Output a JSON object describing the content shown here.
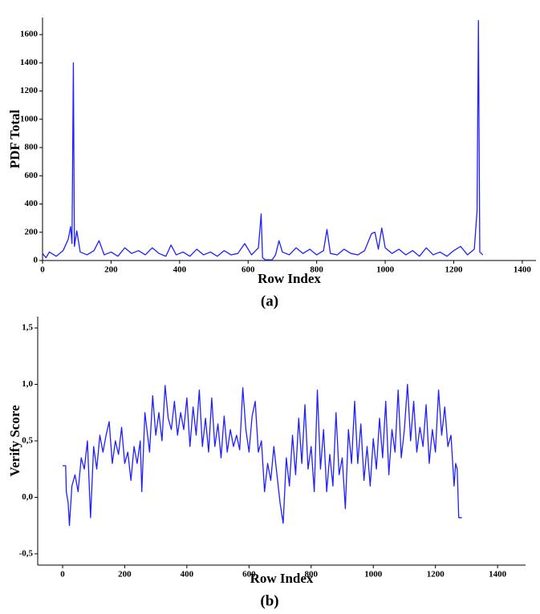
{
  "chart_data": [
    {
      "type": "line",
      "caption": "(a)",
      "x_label": "Row Index",
      "y_label": "PDF Total",
      "xlim": [
        0,
        1440
      ],
      "ylim": [
        0,
        1720
      ],
      "xticks": [
        0,
        200,
        400,
        600,
        800,
        1000,
        1200,
        1400
      ],
      "yticks": [
        0,
        200,
        400,
        600,
        800,
        1000,
        1200,
        1400,
        1600
      ],
      "series": [
        {
          "color": "#1f1fff",
          "x": [
            0,
            10,
            20,
            40,
            60,
            75,
            82,
            86,
            90,
            93,
            100,
            110,
            130,
            150,
            165,
            180,
            200,
            220,
            240,
            260,
            280,
            300,
            320,
            340,
            360,
            375,
            390,
            410,
            430,
            450,
            470,
            490,
            510,
            530,
            550,
            570,
            590,
            610,
            630,
            638,
            642,
            650,
            670,
            680,
            690,
            700,
            720,
            740,
            760,
            780,
            800,
            820,
            830,
            840,
            860,
            880,
            900,
            920,
            940,
            960,
            970,
            980,
            990,
            1000,
            1020,
            1040,
            1060,
            1080,
            1100,
            1120,
            1140,
            1160,
            1180,
            1200,
            1220,
            1240,
            1260,
            1268,
            1272,
            1276,
            1285
          ],
          "values": [
            50,
            20,
            60,
            30,
            70,
            150,
            240,
            120,
            1400,
            100,
            210,
            60,
            40,
            70,
            140,
            40,
            60,
            30,
            90,
            50,
            70,
            40,
            90,
            50,
            30,
            110,
            40,
            60,
            30,
            80,
            40,
            60,
            30,
            70,
            40,
            50,
            120,
            40,
            90,
            330,
            20,
            5,
            5,
            40,
            140,
            60,
            40,
            90,
            50,
            80,
            40,
            70,
            220,
            50,
            40,
            80,
            50,
            40,
            70,
            190,
            200,
            80,
            230,
            90,
            50,
            80,
            40,
            70,
            30,
            90,
            40,
            60,
            30,
            70,
            100,
            40,
            80,
            350,
            1700,
            60,
            40
          ]
        }
      ]
    },
    {
      "type": "line",
      "caption": "(b)",
      "x_label": "Row Index",
      "y_label": "Verify Score",
      "xlim": [
        -80,
        1490
      ],
      "ylim": [
        -0.6,
        1.6
      ],
      "xticks": [
        0,
        200,
        400,
        600,
        800,
        1000,
        1200,
        1400
      ],
      "yticks": [
        {
          "value": -0.5,
          "label": "-0,5"
        },
        {
          "value": 0,
          "label": "0,0"
        },
        {
          "value": 0.5,
          "label": "0,5"
        },
        {
          "value": 1,
          "label": "1,0"
        },
        {
          "value": 1.5,
          "label": "1,5"
        }
      ],
      "series": [
        {
          "color": "#1f1fff",
          "x": [
            0,
            10,
            12,
            18,
            22,
            30,
            40,
            50,
            60,
            70,
            80,
            90,
            100,
            110,
            120,
            130,
            140,
            150,
            160,
            170,
            180,
            190,
            200,
            210,
            220,
            230,
            240,
            250,
            255,
            265,
            280,
            290,
            300,
            310,
            320,
            330,
            340,
            350,
            360,
            370,
            380,
            390,
            400,
            410,
            420,
            430,
            440,
            450,
            460,
            470,
            480,
            490,
            500,
            510,
            520,
            530,
            540,
            550,
            560,
            570,
            580,
            590,
            600,
            610,
            620,
            630,
            640,
            650,
            660,
            670,
            680,
            690,
            700,
            710,
            720,
            730,
            740,
            750,
            760,
            770,
            780,
            790,
            800,
            810,
            820,
            830,
            840,
            850,
            860,
            870,
            880,
            890,
            900,
            910,
            920,
            930,
            940,
            950,
            960,
            970,
            980,
            990,
            1000,
            1010,
            1020,
            1030,
            1040,
            1050,
            1060,
            1070,
            1080,
            1090,
            1100,
            1110,
            1120,
            1130,
            1140,
            1150,
            1160,
            1170,
            1180,
            1190,
            1200,
            1210,
            1220,
            1230,
            1240,
            1250,
            1260,
            1265,
            1270,
            1275,
            1285
          ],
          "values": [
            0.28,
            0.28,
            0.05,
            -0.05,
            -0.25,
            0.1,
            0.2,
            0.05,
            0.35,
            0.25,
            0.5,
            -0.18,
            0.45,
            0.25,
            0.55,
            0.4,
            0.55,
            0.67,
            0.3,
            0.5,
            0.38,
            0.62,
            0.3,
            0.4,
            0.15,
            0.45,
            0.3,
            0.5,
            0.05,
            0.75,
            0.4,
            0.9,
            0.55,
            0.75,
            0.5,
            0.99,
            0.7,
            0.6,
            0.85,
            0.55,
            0.75,
            0.6,
            0.88,
            0.45,
            0.8,
            0.55,
            0.95,
            0.45,
            0.7,
            0.4,
            0.88,
            0.45,
            0.65,
            0.35,
            0.72,
            0.4,
            0.6,
            0.45,
            0.55,
            0.42,
            0.97,
            0.6,
            0.4,
            0.72,
            0.85,
            0.4,
            0.5,
            0.05,
            0.3,
            0.15,
            0.45,
            0.2,
            -0.05,
            -0.23,
            0.35,
            0.1,
            0.55,
            0.2,
            0.7,
            0.3,
            0.82,
            0.25,
            0.45,
            0.05,
            0.95,
            0.25,
            0.6,
            0.05,
            0.38,
            0.1,
            0.75,
            0.2,
            0.35,
            -0.1,
            0.6,
            0.3,
            0.85,
            0.3,
            0.65,
            0.15,
            0.45,
            0.1,
            0.52,
            0.25,
            0.7,
            0.35,
            0.85,
            0.2,
            0.6,
            0.4,
            0.95,
            0.35,
            0.6,
            1.0,
            0.5,
            0.85,
            0.4,
            0.62,
            0.45,
            0.82,
            0.3,
            0.6,
            0.4,
            0.95,
            0.55,
            0.8,
            0.45,
            0.55,
            0.1,
            0.3,
            0.25,
            -0.18,
            -0.18
          ]
        }
      ]
    }
  ]
}
